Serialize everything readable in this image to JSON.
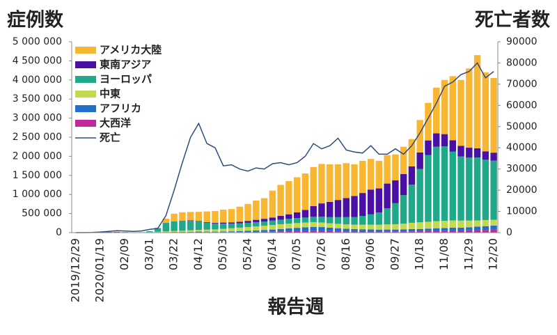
{
  "chart_data": {
    "type": "stacked-bar-line",
    "title": "症例数",
    "y2_title": "死亡者数",
    "x_label": "報告週",
    "categories": [
      "2019/12/29",
      null,
      null,
      "2020/01/19",
      null,
      null,
      "02/09",
      null,
      null,
      "03/01",
      null,
      null,
      "03/22",
      null,
      null,
      "04/12",
      null,
      null,
      "05/03",
      null,
      null,
      "05/24",
      null,
      null,
      "06/14",
      null,
      null,
      "07/05",
      null,
      null,
      "07/26",
      null,
      null,
      "08/16",
      null,
      null,
      "09/06",
      null,
      null,
      "09/27",
      null,
      null,
      "10/18",
      null,
      null,
      "11/08",
      null,
      null,
      "11/29",
      null,
      null,
      "12/20"
    ],
    "ylim": [
      0,
      5000000
    ],
    "yticks": [
      0,
      {
        "value": 500000,
        "label": "500 000"
      },
      {
        "value": 1000000,
        "label": "1 000 000"
      },
      {
        "value": 1500000,
        "label": "1 500 000"
      },
      {
        "value": 2000000,
        "label": "2 000 000"
      },
      {
        "value": 2500000,
        "label": "2 500 000"
      },
      {
        "value": 3000000,
        "label": "3 000 000"
      },
      {
        "value": 3500000,
        "label": "3 500 000"
      },
      {
        "value": 4000000,
        "label": "4 000 000"
      },
      {
        "value": 4500000,
        "label": "4 500 000"
      },
      {
        "value": 5000000,
        "label": "5 000 000"
      }
    ],
    "y2lim": [
      0,
      90000
    ],
    "y2ticks": [
      0,
      10000,
      20000,
      30000,
      40000,
      50000,
      60000,
      70000,
      80000,
      90000
    ],
    "legend": "top-left",
    "series": [
      {
        "name": "アメリカ大陸",
        "color": "#f8b632",
        "values": [
          0,
          0,
          0,
          0,
          0,
          0,
          0,
          0,
          1000,
          2000,
          15000,
          110000,
          200000,
          220000,
          220000,
          240000,
          280000,
          310000,
          340000,
          350000,
          395000,
          445000,
          505000,
          540000,
          705000,
          810000,
          870000,
          920000,
          955000,
          1025000,
          1035000,
          985000,
          935000,
          915000,
          832000,
          842000,
          802000,
          722000,
          745000,
          680000,
          715000,
          713000,
          850000,
          985000,
          1200000,
          1420000,
          1680000,
          1725000,
          2075000,
          2440000,
          2070000,
          1955000
        ]
      },
      {
        "name": "東南アジア",
        "color": "#4a0fa5",
        "values": [
          0,
          0,
          0,
          0,
          0,
          0,
          0,
          0,
          0,
          0,
          0,
          2000,
          3000,
          5000,
          10000,
          12000,
          15000,
          18000,
          25000,
          30000,
          40000,
          50000,
          60000,
          70000,
          80000,
          100000,
          120000,
          150000,
          200000,
          280000,
          350000,
          400000,
          450000,
          500000,
          550000,
          600000,
          650000,
          630000,
          650000,
          600000,
          550000,
          480000,
          430000,
          380000,
          350000,
          320000,
          300000,
          280000,
          260000,
          240000,
          220000,
          210000
        ]
      },
      {
        "name": "ヨーロッパ",
        "color": "#1fa98a",
        "values": [
          0,
          0,
          0,
          0,
          0,
          0,
          0,
          1000,
          4000,
          20000,
          90000,
          220000,
          250000,
          260000,
          250000,
          220000,
          180000,
          155000,
          140000,
          125000,
          115000,
          110000,
          110000,
          110000,
          115000,
          120000,
          125000,
          130000,
          130000,
          140000,
          150000,
          160000,
          175000,
          190000,
          200000,
          230000,
          270000,
          320000,
          420000,
          550000,
          750000,
          1000000,
          1400000,
          1750000,
          1950000,
          1950000,
          1800000,
          1680000,
          1650000,
          1650000,
          1580000,
          1550000
        ]
      },
      {
        "name": "中東",
        "color": "#c4d94e",
        "values": [
          0,
          0,
          0,
          0,
          0,
          0,
          0,
          1000,
          2000,
          10000,
          15000,
          20000,
          25000,
          30000,
          40000,
          45000,
          55000,
          60000,
          70000,
          80000,
          90000,
          100000,
          110000,
          115000,
          120000,
          125000,
          125000,
          125000,
          125000,
          125000,
          120000,
          115000,
          115000,
          115000,
          115000,
          120000,
          125000,
          130000,
          135000,
          140000,
          150000,
          165000,
          175000,
          180000,
          185000,
          190000,
          190000,
          185000,
          175000,
          165000,
          160000,
          150000
        ]
      },
      {
        "name": "アフリカ",
        "color": "#1f6fcb",
        "values": [
          0,
          0,
          0,
          0,
          0,
          0,
          0,
          0,
          0,
          0,
          0,
          1000,
          2000,
          4000,
          6000,
          8000,
          10000,
          13000,
          16000,
          20000,
          25000,
          30000,
          35000,
          45000,
          55000,
          65000,
          75000,
          85000,
          95000,
          100000,
          100000,
          90000,
          80000,
          70000,
          65000,
          60000,
          55000,
          50000,
          50000,
          50000,
          55000,
          60000,
          60000,
          65000,
          70000,
          70000,
          75000,
          75000,
          80000,
          90000,
          100000,
          110000
        ]
      },
      {
        "name": "大西洋",
        "color": "#c1289c",
        "values": [
          0,
          0,
          1000,
          8000,
          18000,
          20000,
          14000,
          6000,
          4000,
          6000,
          8000,
          12000,
          15000,
          15000,
          15000,
          20000,
          15000,
          12000,
          12000,
          13000,
          15000,
          17000,
          20000,
          22000,
          25000,
          30000,
          35000,
          40000,
          45000,
          50000,
          45000,
          40000,
          35000,
          30000,
          28000,
          28000,
          28000,
          28000,
          30000,
          30000,
          30000,
          32000,
          35000,
          40000,
          45000,
          50000,
          55000,
          55000,
          60000,
          65000,
          70000,
          75000
        ]
      },
      {
        "name": "死亡",
        "color": "#2d4a80",
        "type": "line",
        "axis": "y2",
        "values": [
          0,
          0,
          100,
          300,
          600,
          900,
          800,
          600,
          800,
          1500,
          2000,
          8000,
          20000,
          33000,
          45000,
          51500,
          42000,
          40000,
          31500,
          32000,
          30000,
          29000,
          30500,
          30000,
          32500,
          33000,
          32000,
          33000,
          36000,
          42000,
          39500,
          41000,
          44500,
          39000,
          38000,
          37500,
          41000,
          37000,
          37000,
          39500,
          37000,
          41000,
          47000,
          54000,
          61000,
          69000,
          71000,
          74500,
          76000,
          80000,
          73000,
          76000
        ]
      }
    ]
  }
}
